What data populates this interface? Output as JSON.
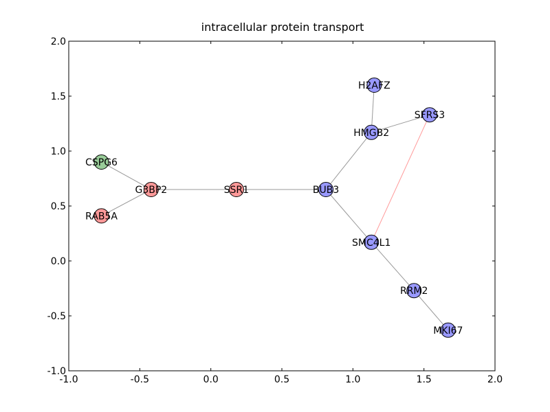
{
  "chart_data": {
    "type": "scatter",
    "title": "intracellular protein transport",
    "xlabel": "",
    "ylabel": "",
    "xlim": [
      -1.0,
      2.0
    ],
    "ylim": [
      -1.0,
      2.0
    ],
    "x_ticks": [
      -1.0,
      -0.5,
      0.0,
      0.5,
      1.0,
      1.5,
      2.0
    ],
    "y_ticks": [
      -1.0,
      -0.5,
      0.0,
      0.5,
      1.0,
      1.5,
      2.0
    ],
    "x_tick_labels": [
      "-1.0",
      "-0.5",
      "0.0",
      "0.5",
      "1.0",
      "1.5",
      "2.0"
    ],
    "y_tick_labels": [
      "-1.0",
      "-0.5",
      "0.0",
      "0.5",
      "1.0",
      "1.5",
      "2.0"
    ],
    "grid": false,
    "nodes": [
      {
        "id": "CSPG6",
        "x": -0.77,
        "y": 0.9,
        "color": "#99cc99"
      },
      {
        "id": "G3BP2",
        "x": -0.42,
        "y": 0.65,
        "color": "#ff9999"
      },
      {
        "id": "RAB5A",
        "x": -0.77,
        "y": 0.41,
        "color": "#ff9999"
      },
      {
        "id": "SSR1",
        "x": 0.18,
        "y": 0.65,
        "color": "#ff9999"
      },
      {
        "id": "BUB3",
        "x": 0.81,
        "y": 0.65,
        "color": "#9999ff"
      },
      {
        "id": "H2AFZ",
        "x": 1.15,
        "y": 1.6,
        "color": "#9999ff"
      },
      {
        "id": "HMGB2",
        "x": 1.13,
        "y": 1.17,
        "color": "#9999ff"
      },
      {
        "id": "SFRS3",
        "x": 1.54,
        "y": 1.33,
        "color": "#9999ff"
      },
      {
        "id": "SMC4L1",
        "x": 1.13,
        "y": 0.17,
        "color": "#9999ff"
      },
      {
        "id": "RRM2",
        "x": 1.43,
        "y": -0.27,
        "color": "#9999ff"
      },
      {
        "id": "MKI67",
        "x": 1.67,
        "y": -0.63,
        "color": "#9999ff"
      }
    ],
    "edges": [
      {
        "source": "CSPG6",
        "target": "G3BP2",
        "color": "#999999"
      },
      {
        "source": "RAB5A",
        "target": "G3BP2",
        "color": "#999999"
      },
      {
        "source": "G3BP2",
        "target": "SSR1",
        "color": "#999999"
      },
      {
        "source": "SSR1",
        "target": "BUB3",
        "color": "#999999"
      },
      {
        "source": "BUB3",
        "target": "HMGB2",
        "color": "#999999"
      },
      {
        "source": "HMGB2",
        "target": "H2AFZ",
        "color": "#999999"
      },
      {
        "source": "HMGB2",
        "target": "SFRS3",
        "color": "#999999"
      },
      {
        "source": "BUB3",
        "target": "SMC4L1",
        "color": "#999999"
      },
      {
        "source": "SMC4L1",
        "target": "SFRS3",
        "color": "#ff9999"
      },
      {
        "source": "SMC4L1",
        "target": "RRM2",
        "color": "#999999"
      },
      {
        "source": "RRM2",
        "target": "MKI67",
        "color": "#999999"
      }
    ]
  }
}
